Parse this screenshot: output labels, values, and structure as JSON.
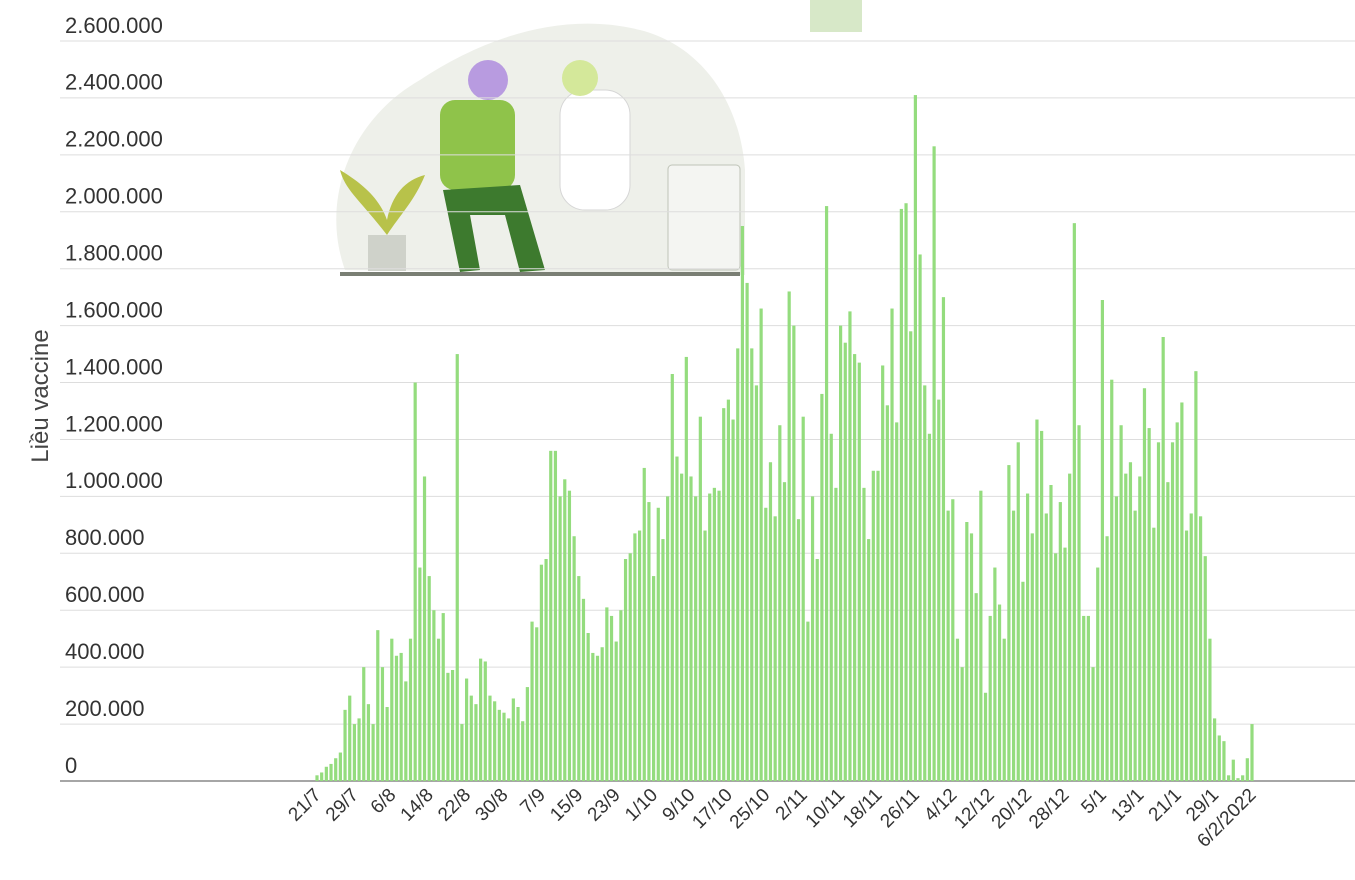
{
  "chart_data": {
    "type": "bar",
    "y_label": "Liều vaccine",
    "color": "#94dc7e",
    "grid": true,
    "ylim": [
      0,
      2600000
    ],
    "yticks": [
      0,
      {
        "value": 200000,
        "label": "200.000"
      },
      {
        "value": 400000,
        "label": "400.000"
      },
      {
        "value": 600000,
        "label": "600.000"
      },
      {
        "value": 800000,
        "label": "800.000"
      },
      {
        "value": 1000000,
        "label": "1.000.000"
      },
      {
        "value": 1200000,
        "label": "1.200.000"
      },
      {
        "value": 1400000,
        "label": "1.400.000"
      },
      {
        "value": 1600000,
        "label": "1.600.000"
      },
      {
        "value": 1800000,
        "label": "1.800.000"
      },
      {
        "value": 2000000,
        "label": "2.000.000"
      },
      {
        "value": 2200000,
        "label": "2.200.000"
      },
      {
        "value": 2400000,
        "label": "2.400.000"
      },
      {
        "value": 2600000,
        "label": "2.600.000"
      }
    ],
    "categories": [
      "21/7",
      null,
      null,
      null,
      null,
      null,
      null,
      null,
      "29/7",
      null,
      null,
      null,
      null,
      null,
      null,
      null,
      "6/8",
      null,
      null,
      null,
      null,
      null,
      null,
      null,
      "14/8",
      null,
      null,
      null,
      null,
      null,
      null,
      null,
      "22/8",
      null,
      null,
      null,
      null,
      null,
      null,
      null,
      "30/8",
      null,
      null,
      null,
      null,
      null,
      null,
      null,
      "7/9",
      null,
      null,
      null,
      null,
      null,
      null,
      null,
      "15/9",
      null,
      null,
      null,
      null,
      null,
      null,
      null,
      "23/9",
      null,
      null,
      null,
      null,
      null,
      null,
      null,
      "1/10",
      null,
      null,
      null,
      null,
      null,
      null,
      null,
      "9/10",
      null,
      null,
      null,
      null,
      null,
      null,
      null,
      "17/10",
      null,
      null,
      null,
      null,
      null,
      null,
      null,
      "25/10",
      null,
      null,
      null,
      null,
      null,
      null,
      null,
      "2/11",
      null,
      null,
      null,
      null,
      null,
      null,
      null,
      "10/11",
      null,
      null,
      null,
      null,
      null,
      null,
      null,
      "18/11",
      null,
      null,
      null,
      null,
      null,
      null,
      null,
      "26/11",
      null,
      null,
      null,
      null,
      null,
      null,
      null,
      "4/12",
      null,
      null,
      null,
      null,
      null,
      null,
      null,
      "12/12",
      null,
      null,
      null,
      null,
      null,
      null,
      null,
      "20/12",
      null,
      null,
      null,
      null,
      null,
      null,
      null,
      "28/12",
      null,
      null,
      null,
      null,
      null,
      null,
      null,
      "5/1",
      null,
      null,
      null,
      null,
      null,
      null,
      null,
      "13/1",
      null,
      null,
      null,
      null,
      null,
      null,
      null,
      "21/1",
      null,
      null,
      null,
      null,
      null,
      null,
      null,
      "29/1",
      null,
      null,
      null,
      null,
      null,
      null,
      null,
      "6/2/2022"
    ],
    "values": [
      20000,
      30000,
      50000,
      60000,
      80000,
      100000,
      250000,
      300000,
      200000,
      220000,
      400000,
      270000,
      200000,
      530000,
      400000,
      260000,
      500000,
      440000,
      450000,
      350000,
      500000,
      1400000,
      750000,
      1070000,
      720000,
      600000,
      500000,
      590000,
      380000,
      390000,
      1500000,
      200000,
      360000,
      300000,
      270000,
      430000,
      420000,
      300000,
      280000,
      250000,
      240000,
      220000,
      290000,
      260000,
      210000,
      330000,
      560000,
      540000,
      760000,
      780000,
      1160000,
      1160000,
      1000000,
      1060000,
      1020000,
      860000,
      720000,
      640000,
      520000,
      450000,
      440000,
      470000,
      610000,
      580000,
      490000,
      600000,
      780000,
      800000,
      870000,
      880000,
      1100000,
      980000,
      720000,
      960000,
      850000,
      1000000,
      1430000,
      1140000,
      1080000,
      1490000,
      1070000,
      1000000,
      1280000,
      880000,
      1010000,
      1030000,
      1020000,
      1310000,
      1340000,
      1270000,
      1520000,
      1950000,
      1750000,
      1520000,
      1390000,
      1660000,
      960000,
      1120000,
      930000,
      1250000,
      1050000,
      1720000,
      1600000,
      920000,
      1280000,
      560000,
      1000000,
      780000,
      1360000,
      2020000,
      1220000,
      1030000,
      1600000,
      1540000,
      1650000,
      1500000,
      1470000,
      1030000,
      850000,
      1090000,
      1090000,
      1460000,
      1320000,
      1660000,
      1260000,
      2010000,
      2030000,
      1580000,
      2410000,
      1850000,
      1390000,
      1220000,
      2230000,
      1340000,
      1700000,
      950000,
      990000,
      500000,
      400000,
      910000,
      870000,
      660000,
      1020000,
      310000,
      580000,
      750000,
      620000,
      500000,
      1110000,
      950000,
      1190000,
      700000,
      1010000,
      870000,
      1270000,
      1230000,
      940000,
      1040000,
      800000,
      980000,
      820000,
      1080000,
      1960000,
      1250000,
      580000,
      580000,
      400000,
      750000,
      1690000,
      860000,
      1410000,
      1000000,
      1250000,
      1080000,
      1120000,
      950000,
      1070000,
      1380000,
      1240000,
      890000,
      1190000,
      1560000,
      1050000,
      1190000,
      1260000,
      1330000,
      880000,
      940000,
      1440000,
      930000,
      790000,
      500000,
      220000,
      160000,
      140000,
      20000,
      75000,
      10000,
      20000,
      80000,
      200000
    ]
  }
}
